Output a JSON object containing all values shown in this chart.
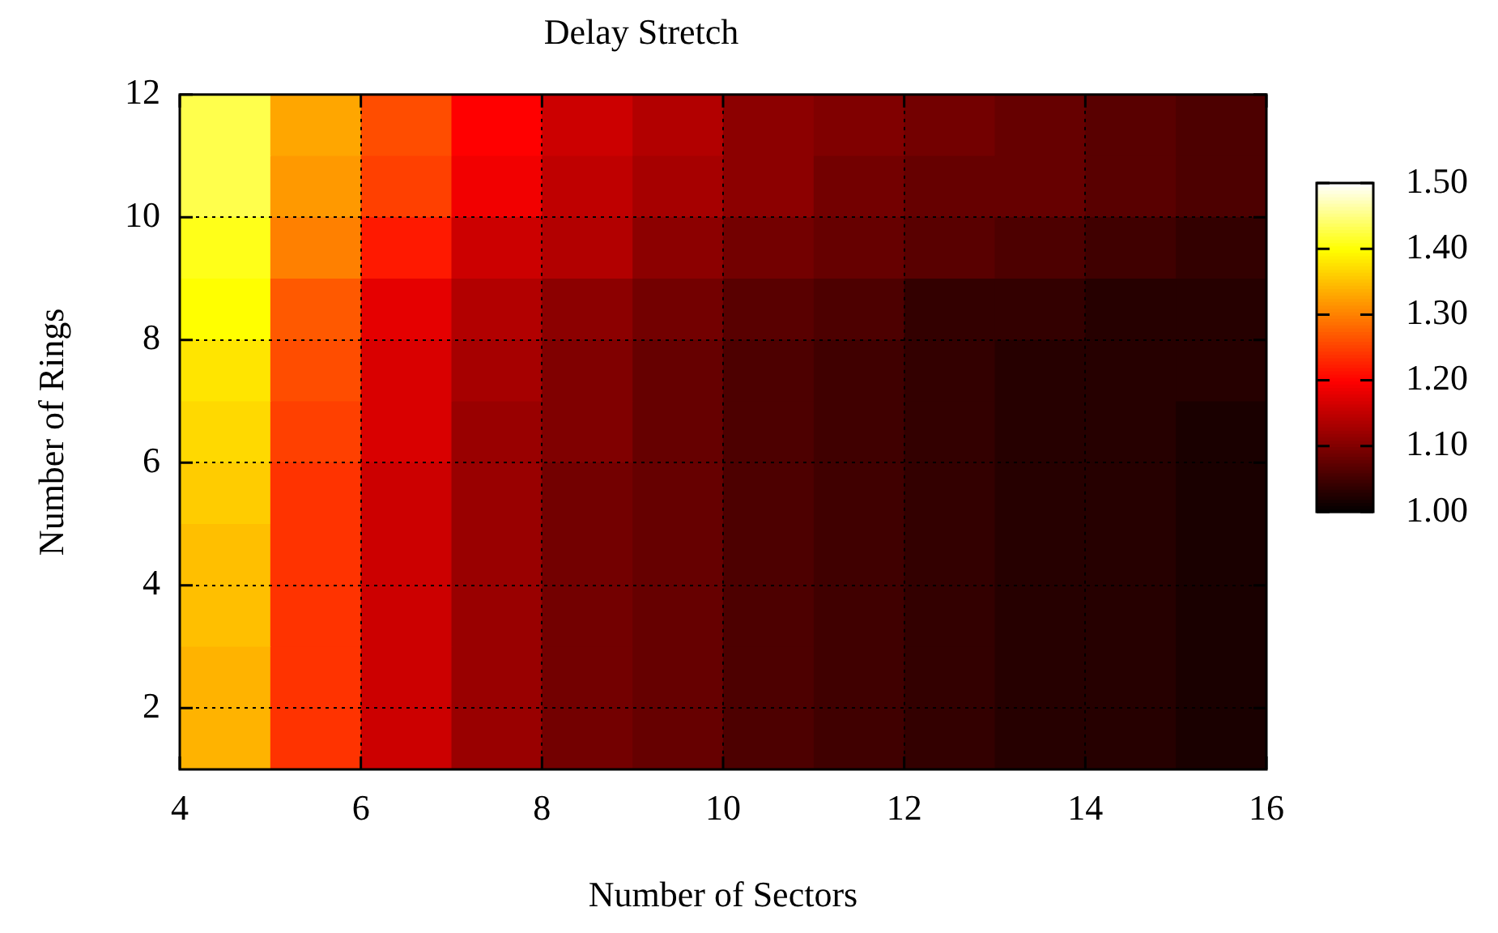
{
  "chart_data": {
    "type": "heatmap",
    "title": "Delay Stretch",
    "xlabel": "Number of Sectors",
    "ylabel": "Number of Rings",
    "xlim": [
      4,
      16
    ],
    "xticks": [
      4,
      6,
      8,
      10,
      12,
      14,
      16
    ],
    "ylim": [
      1,
      12
    ],
    "yticks": [
      2,
      4,
      6,
      8,
      10,
      12
    ],
    "cells": [
      [
        1.43,
        1.33,
        1.26,
        1.2,
        1.16,
        1.14,
        1.11,
        1.1,
        1.09,
        1.08,
        1.07,
        1.06
      ],
      [
        1.43,
        1.32,
        1.25,
        1.19,
        1.15,
        1.13,
        1.11,
        1.09,
        1.08,
        1.08,
        1.07,
        1.06
      ],
      [
        1.41,
        1.3,
        1.22,
        1.16,
        1.14,
        1.11,
        1.09,
        1.08,
        1.07,
        1.06,
        1.05,
        1.04
      ],
      [
        1.4,
        1.27,
        1.18,
        1.14,
        1.11,
        1.09,
        1.07,
        1.06,
        1.04,
        1.04,
        1.03,
        1.03
      ],
      [
        1.38,
        1.26,
        1.17,
        1.13,
        1.1,
        1.08,
        1.06,
        1.05,
        1.04,
        1.03,
        1.03,
        1.03
      ],
      [
        1.37,
        1.25,
        1.17,
        1.12,
        1.1,
        1.08,
        1.06,
        1.05,
        1.04,
        1.03,
        1.03,
        1.02
      ],
      [
        1.36,
        1.24,
        1.16,
        1.12,
        1.09,
        1.08,
        1.06,
        1.05,
        1.04,
        1.03,
        1.03,
        1.02
      ],
      [
        1.35,
        1.24,
        1.16,
        1.12,
        1.09,
        1.08,
        1.06,
        1.05,
        1.04,
        1.03,
        1.03,
        1.02
      ],
      [
        1.35,
        1.24,
        1.16,
        1.12,
        1.09,
        1.08,
        1.06,
        1.05,
        1.04,
        1.03,
        1.03,
        1.02
      ],
      [
        1.34,
        1.24,
        1.16,
        1.12,
        1.09,
        1.08,
        1.06,
        1.05,
        1.04,
        1.03,
        1.03,
        1.02
      ],
      [
        1.34,
        1.24,
        1.16,
        1.12,
        1.09,
        1.08,
        1.06,
        1.05,
        1.04,
        1.03,
        1.03,
        1.02
      ]
    ],
    "clim": [
      1,
      1.5
    ],
    "cticks": [
      {
        "value": 1,
        "label": "1.00"
      },
      {
        "value": 1.1,
        "label": "1.10"
      },
      {
        "value": 1.2,
        "label": "1.20"
      },
      {
        "value": 1.3,
        "label": "1.30"
      },
      {
        "value": 1.4,
        "label": "1.40"
      },
      {
        "value": 1.5,
        "label": "1.50"
      }
    ],
    "grid": true
  }
}
